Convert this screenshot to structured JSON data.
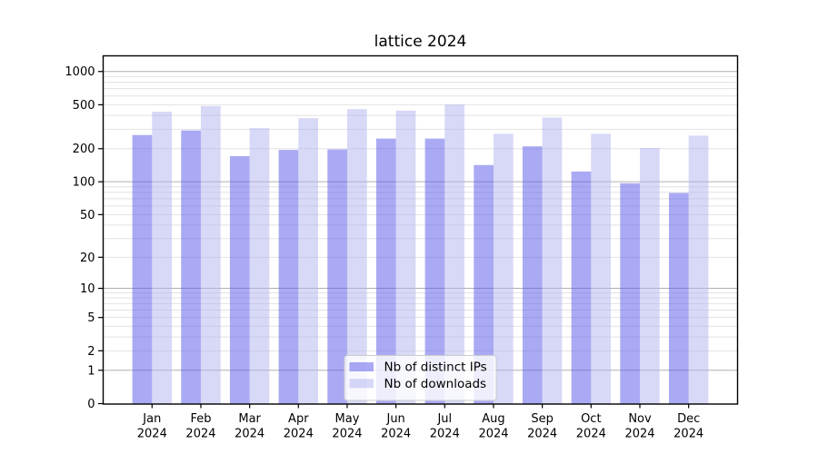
{
  "title": "lattice 2024",
  "chart_data": {
    "type": "bar",
    "title": "lattice 2024",
    "categories": [
      "Jan",
      "Feb",
      "Mar",
      "Apr",
      "May",
      "Jun",
      "Jul",
      "Aug",
      "Sep",
      "Oct",
      "Nov",
      "Dec"
    ],
    "x_year_label": "2024",
    "series": [
      {
        "key": "distinct-ips",
        "name": "Nb of distinct IPs",
        "color_hex": "#aaaaf4",
        "fill": "rgba(85,85,234,0.5)",
        "values": [
          266,
          293,
          171,
          195,
          197,
          247,
          247,
          142,
          210,
          124,
          97,
          79
        ]
      },
      {
        "key": "downloads",
        "name": "Nb of downloads",
        "color_hex": "#d9d9f8",
        "fill": "rgba(178,178,240,0.5)",
        "values": [
          433,
          487,
          307,
          378,
          457,
          443,
          503,
          273,
          383,
          273,
          203,
          263
        ]
      }
    ],
    "y_axis": {
      "scale": "log1p",
      "tick_labels": [
        1000,
        500,
        200,
        100,
        50,
        20,
        10,
        5,
        2,
        1,
        0
      ],
      "major_gridlines": [
        1,
        10,
        100,
        1000
      ],
      "minor_gridlines": [
        2,
        3,
        4,
        5,
        6,
        7,
        8,
        9,
        20,
        30,
        40,
        50,
        60,
        70,
        80,
        90,
        200,
        300,
        400,
        500,
        600,
        700,
        800,
        900
      ],
      "range": [
        0,
        1370
      ]
    },
    "legend": {
      "position": "bottom-center",
      "items": [
        "Nb of distinct IPs",
        "Nb of downloads"
      ]
    },
    "grid": true,
    "colors": {
      "major_grid": "#b0b0b0",
      "minor_grid": "#e2e2e2",
      "spine": "#000000",
      "legend_border": "#cccccc",
      "legend_bg": "rgba(255,255,255,0.8)"
    }
  }
}
